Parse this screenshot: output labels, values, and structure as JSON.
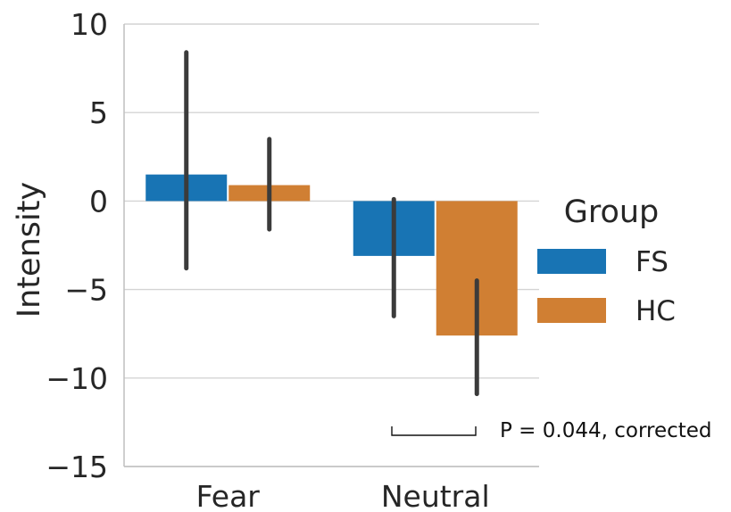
{
  "chart_data": {
    "type": "bar",
    "categories": [
      "Fear",
      "Neutral"
    ],
    "series": [
      {
        "name": "FS",
        "color": "#1874b4",
        "values": [
          1.5,
          -3.1
        ],
        "error_low": [
          -3.8,
          -6.5
        ],
        "error_high": [
          8.4,
          0.1
        ]
      },
      {
        "name": "HC",
        "color": "#d07f33",
        "values": [
          0.9,
          -7.6
        ],
        "error_low": [
          -1.6,
          -10.9
        ],
        "error_high": [
          3.5,
          -4.5
        ]
      }
    ],
    "ylabel": "Intensity",
    "xlabel": "",
    "ylim": [
      -15,
      10
    ],
    "yticks": [
      10,
      5,
      0,
      -5,
      -10,
      -15
    ],
    "ytick_labels": [
      "10",
      "5",
      "0",
      "−5",
      "−10",
      "−15"
    ],
    "grid": "horizontal",
    "legend": {
      "title": "Group",
      "placement": "right"
    },
    "annotation": {
      "text": "P = 0.044, corrected"
    }
  }
}
